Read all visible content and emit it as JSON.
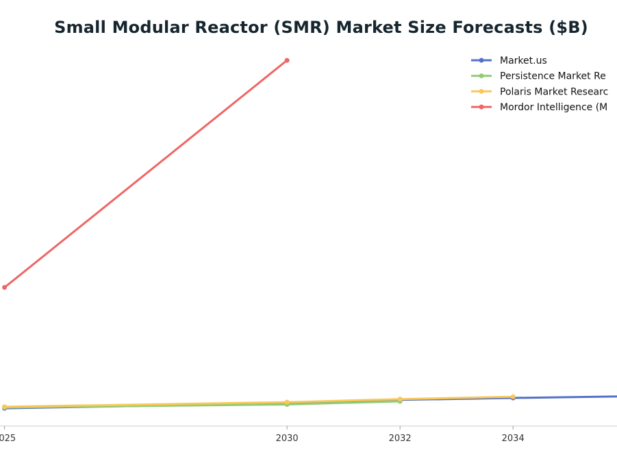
{
  "chart_data": {
    "type": "line",
    "title": "Small Modular Reactor (SMR) Market Size Forecasts ($B)",
    "xlabel": "",
    "ylabel": "",
    "xlim": [
      2024.92,
      2035.84
    ],
    "ylim": [
      0,
      100
    ],
    "x_ticks": [
      2025,
      2030,
      2032,
      2034
    ],
    "x_tick_labels": [
      "2025",
      "2030",
      "2032",
      "2034"
    ],
    "grid": false,
    "legend_position": "top-right",
    "series": [
      {
        "name": "Market.us",
        "color": "#5470c6",
        "points": [
          [
            2025,
            4.6
          ],
          [
            2030,
            5.9
          ],
          [
            2032,
            6.8
          ],
          [
            2034,
            7.3
          ],
          [
            2036,
            7.7
          ]
        ]
      },
      {
        "name": "Persistence Market Re",
        "color": "#91cc75",
        "points": [
          [
            2025,
            4.8
          ],
          [
            2030,
            5.6
          ],
          [
            2032,
            6.4
          ]
        ]
      },
      {
        "name": "Polaris Market Researc",
        "color": "#fac858",
        "points": [
          [
            2025,
            5.0
          ],
          [
            2030,
            6.2
          ],
          [
            2032,
            7.0
          ],
          [
            2034,
            7.6
          ]
        ]
      },
      {
        "name": "Mordor Intelligence (M",
        "color": "#ee6666",
        "points": [
          [
            2025,
            36.0
          ],
          [
            2030,
            95.0
          ]
        ]
      }
    ]
  }
}
